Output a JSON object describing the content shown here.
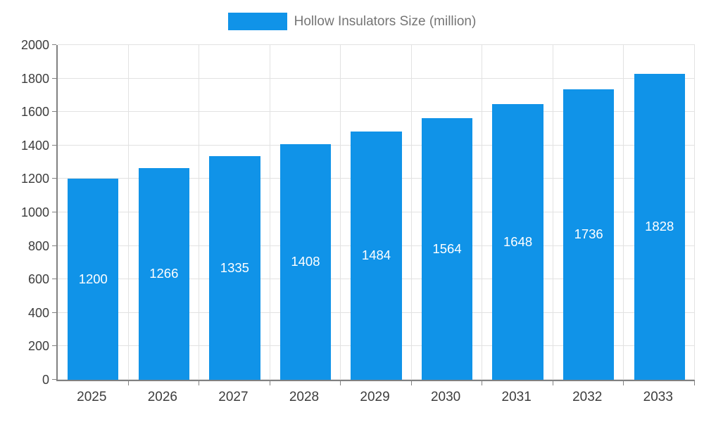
{
  "chart_data": {
    "type": "bar",
    "title": "Hollow Insulators Size (million)",
    "legend": [
      "Hollow Insulators Size (million)"
    ],
    "legend_position": "top",
    "categories": [
      "2025",
      "2026",
      "2027",
      "2028",
      "2029",
      "2030",
      "2031",
      "2032",
      "2033"
    ],
    "values": [
      1200,
      1266,
      1335,
      1408,
      1484,
      1564,
      1648,
      1736,
      1828
    ],
    "xlabel": "",
    "ylabel": "",
    "ylim": [
      0,
      2000
    ],
    "ytick_step": 200,
    "grid": true,
    "bar_color": "#1093e8",
    "bar_label_color": "#ffffff",
    "axis_text_color": "#3d3d3d",
    "title_color": "#757575"
  }
}
